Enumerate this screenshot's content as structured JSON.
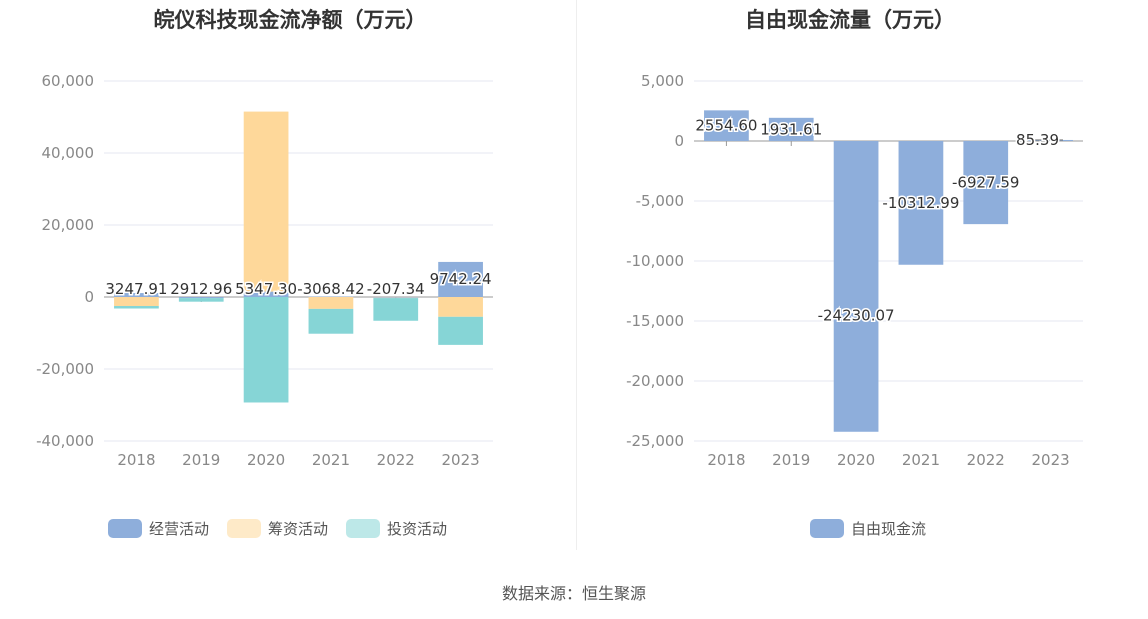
{
  "source_label": "数据来源：恒生聚源",
  "chart_data": [
    {
      "type": "bar",
      "stacked": true,
      "title": "皖仪科技现金流净额（万元）",
      "categories": [
        "2018",
        "2019",
        "2020",
        "2021",
        "2022",
        "2023"
      ],
      "ylim": [
        -40000,
        60000
      ],
      "yticks": [
        60000,
        40000,
        20000,
        0,
        -20000,
        -40000
      ],
      "ytick_labels": [
        "60,000",
        "40,000",
        "20,000",
        "0",
        "-20,000",
        "-40,000"
      ],
      "grid": true,
      "legend_position": "bottom",
      "series": [
        {
          "name": "经营活动",
          "color": "#8eaedb",
          "values": [
            1100,
            -300,
            1500,
            100,
            -200,
            9742.24
          ]
        },
        {
          "name": "筹资活动",
          "color": "#fed89a",
          "values": [
            -2500,
            0,
            50000,
            -3300,
            -100,
            -5500
          ]
        },
        {
          "name": "投资活动",
          "color": "#86d5d6",
          "values": [
            -700,
            -1000,
            -29300,
            -6900,
            -6300,
            -7800
          ]
        }
      ],
      "data_labels": [
        "3247.91",
        "2912.96",
        "5347.30",
        "-3068.42",
        "-207.34",
        "9742.24"
      ],
      "data_label_values": [
        3247.91,
        2912.96,
        5347.3,
        -3068.42,
        -207.34,
        9742.24
      ]
    },
    {
      "type": "bar",
      "title": "自由现金流量（万元）",
      "categories": [
        "2018",
        "2019",
        "2020",
        "2021",
        "2022",
        "2023"
      ],
      "ylim": [
        -25000,
        5000
      ],
      "yticks": [
        5000,
        0,
        -5000,
        -10000,
        -15000,
        -20000,
        -25000
      ],
      "ytick_labels": [
        "5,000",
        "0",
        "-5,000",
        "-10,000",
        "-15,000",
        "-20,000",
        "-25,000"
      ],
      "grid": true,
      "legend_position": "bottom",
      "series": [
        {
          "name": "自由现金流",
          "color": "#8eaedb",
          "values": [
            2554.6,
            1931.61,
            -24230.07,
            -10312.99,
            -6927.59,
            85.39
          ]
        }
      ],
      "data_labels": [
        "2554.60",
        "1931.61",
        "-24230.07",
        "-10312.99",
        "-6927.59",
        "85.39"
      ]
    }
  ]
}
